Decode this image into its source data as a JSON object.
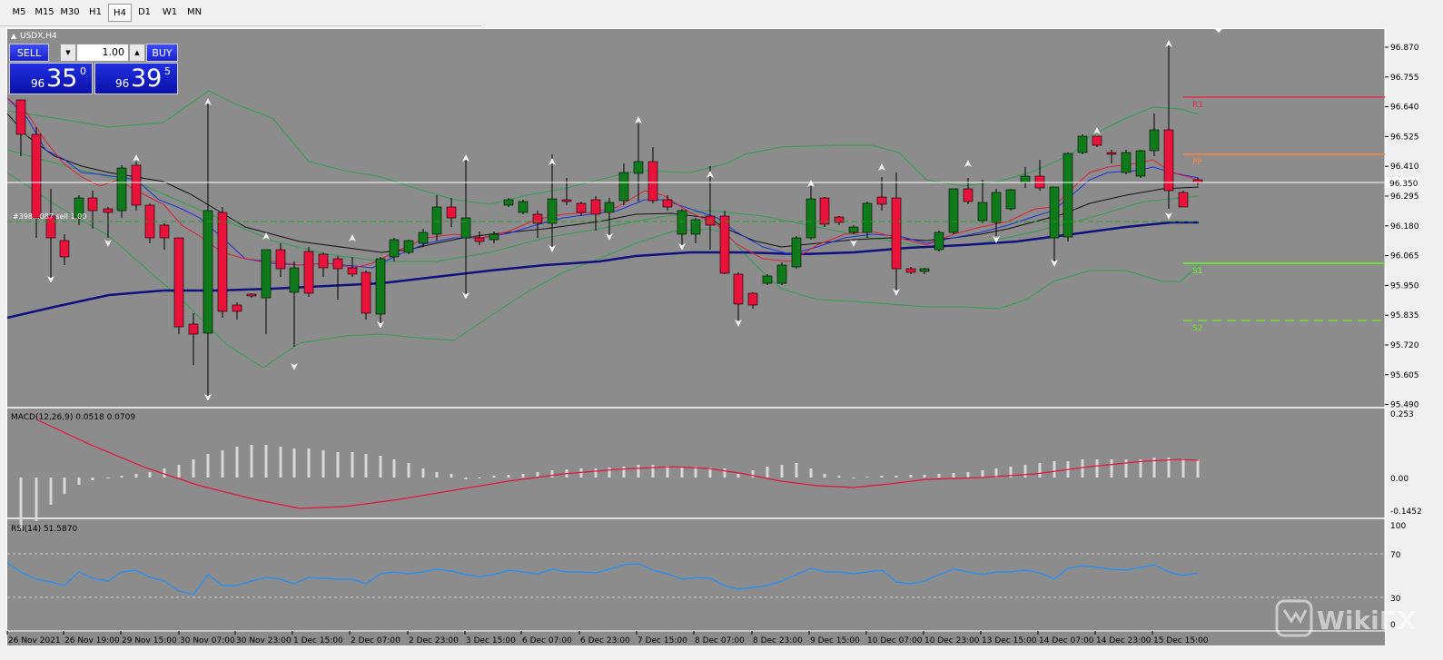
{
  "toolbar": {
    "timeframes": [
      {
        "label": "M5"
      },
      {
        "label": "M15"
      },
      {
        "label": "M30"
      },
      {
        "label": "H1"
      },
      {
        "label": "H4",
        "active": true
      },
      {
        "label": "D1"
      },
      {
        "label": "W1"
      },
      {
        "label": "MN"
      }
    ]
  },
  "chart": {
    "symbol_label": "USDX,H4",
    "position_label": "#398...087 sell 1.00",
    "current_price": "96.350",
    "price_axis": [
      "96.870",
      "96.755",
      "96.640",
      "96.525",
      "96.410",
      "96.295",
      "96.180",
      "96.065",
      "95.950",
      "95.835",
      "95.720",
      "95.605",
      "95.490"
    ],
    "levels": [
      {
        "name": "R1",
        "color": "#e0304a"
      },
      {
        "name": "PP",
        "color": "#ff8040"
      },
      {
        "name": "S1",
        "color": "#60ff20"
      },
      {
        "name": "S2",
        "color": "#70e030"
      }
    ],
    "time_axis": [
      "26 Nov 2021",
      "26 Nov 19:00",
      "29 Nov 15:00",
      "30 Nov 07:00",
      "30 Nov 23:00",
      "1 Dec 15:00",
      "2 Dec 07:00",
      "2 Dec 23:00",
      "3 Dec 15:00",
      "6 Dec 07:00",
      "6 Dec 23:00",
      "7 Dec 15:00",
      "8 Dec 07:00",
      "8 Dec 23:00",
      "9 Dec 15:00",
      "10 Dec 07:00",
      "10 Dec 23:00",
      "13 Dec 15:00",
      "14 Dec 07:00",
      "14 Dec 23:00",
      "15 Dec 15:00"
    ],
    "colors": {
      "background": "#8c8c8c",
      "bull": "#0e7a1a",
      "bear": "#e8123a",
      "sma_long": "#101080"
    }
  },
  "trade_panel": {
    "sell_label": "SELL",
    "buy_label": "BUY",
    "volume": "1.00",
    "sell_price": {
      "small": "96",
      "big": "35",
      "sup": "0"
    },
    "buy_price": {
      "small": "96",
      "big": "39",
      "sup": "5"
    }
  },
  "macd": {
    "label": "MACD(12,26,9) 0.0518 0.0709",
    "axis": [
      "0.253",
      "0.00",
      "-0.1452"
    ]
  },
  "rsi": {
    "label": "RSI(14) 51.5870",
    "axis": [
      "100",
      "70",
      "30",
      "0"
    ]
  },
  "watermark": {
    "text": "WikiFX"
  }
}
